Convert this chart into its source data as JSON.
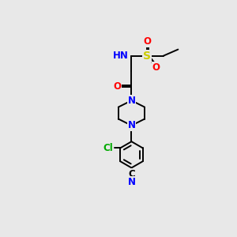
{
  "background_color": "#e8e8e8",
  "atom_colors": {
    "C": "#000000",
    "N": "#0000ff",
    "O": "#ff0000",
    "S": "#cccc00",
    "Cl": "#00aa00",
    "H": "#4a9a9a"
  },
  "bond_color": "#000000",
  "bond_lw": 1.4,
  "font_size": 8.5
}
